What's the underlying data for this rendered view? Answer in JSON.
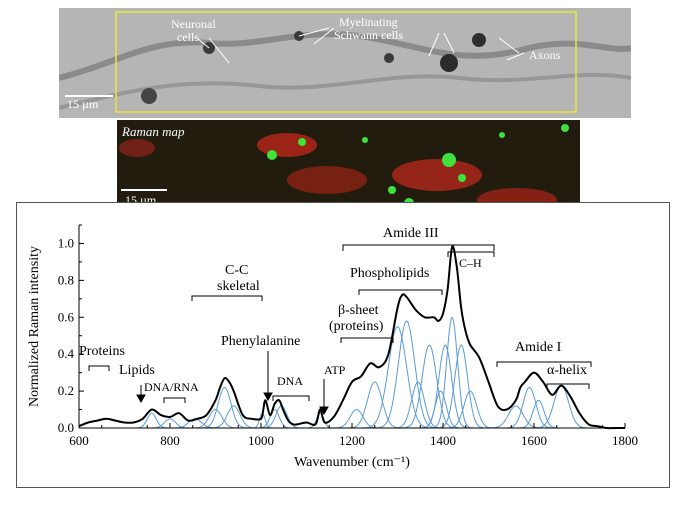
{
  "microscopy": {
    "labels": {
      "neuronal": "Neuronal",
      "cells": "cells",
      "myelinating": "Myelinating",
      "schwann": "Schwann cells",
      "axons": "Axons"
    },
    "scale": "15 µm"
  },
  "raman_map": {
    "title": "Raman map",
    "scale": "15 µm"
  },
  "chart_data": {
    "type": "line",
    "xlabel": "Wavenumber (cm⁻¹)",
    "ylabel": "Normalized Raman intensity",
    "xlim": [
      600,
      1800
    ],
    "ylim": [
      0,
      1.1
    ],
    "xticks": [
      600,
      800,
      1000,
      1200,
      1400,
      1600,
      1800
    ],
    "yticks": [
      0,
      0.2,
      0.4,
      0.6,
      0.8,
      1.0
    ],
    "grid": false,
    "series": [
      {
        "role": "measured spectrum",
        "color": "#000000",
        "x": [
          600,
          620,
          640,
          660,
          680,
          700,
          720,
          740,
          760,
          780,
          800,
          820,
          840,
          860,
          880,
          900,
          910,
          920,
          930,
          940,
          960,
          980,
          1000,
          1005,
          1010,
          1020,
          1030,
          1040,
          1050,
          1060,
          1070,
          1080,
          1100,
          1120,
          1130,
          1140,
          1160,
          1180,
          1200,
          1220,
          1240,
          1260,
          1280,
          1300,
          1310,
          1320,
          1340,
          1360,
          1380,
          1390,
          1400,
          1410,
          1420,
          1430,
          1440,
          1450,
          1460,
          1480,
          1500,
          1520,
          1540,
          1560,
          1570,
          1580,
          1600,
          1620,
          1640,
          1660,
          1680,
          1700,
          1720,
          1740,
          1760,
          1780,
          1800
        ],
        "y": [
          0.01,
          0.03,
          0.04,
          0.05,
          0.04,
          0.03,
          0.03,
          0.05,
          0.1,
          0.07,
          0.06,
          0.08,
          0.04,
          0.05,
          0.07,
          0.15,
          0.22,
          0.27,
          0.25,
          0.2,
          0.07,
          0.05,
          0.05,
          0.1,
          0.15,
          0.07,
          0.13,
          0.15,
          0.09,
          0.04,
          0.02,
          0.02,
          0.03,
          0.02,
          0.1,
          0.03,
          0.06,
          0.15,
          0.25,
          0.28,
          0.35,
          0.33,
          0.4,
          0.65,
          0.72,
          0.71,
          0.64,
          0.6,
          0.6,
          0.58,
          0.62,
          0.75,
          0.98,
          0.88,
          0.65,
          0.52,
          0.45,
          0.38,
          0.25,
          0.12,
          0.1,
          0.15,
          0.22,
          0.25,
          0.3,
          0.25,
          0.18,
          0.23,
          0.17,
          0.08,
          0.02,
          0.01,
          0.0,
          0.0,
          0.0
        ]
      }
    ],
    "component_bands": {
      "color": "#5b9bd5",
      "peaks": [
        {
          "center": 760,
          "height": 0.08,
          "width": 10
        },
        {
          "center": 800,
          "height": 0.05,
          "width": 12
        },
        {
          "center": 855,
          "height": 0.05,
          "width": 14
        },
        {
          "center": 900,
          "height": 0.1,
          "width": 14
        },
        {
          "center": 920,
          "height": 0.22,
          "width": 14
        },
        {
          "center": 940,
          "height": 0.12,
          "width": 14
        },
        {
          "center": 1003,
          "height": 0.08,
          "width": 6
        },
        {
          "center": 1030,
          "height": 0.1,
          "width": 10
        },
        {
          "center": 1045,
          "height": 0.12,
          "width": 12
        },
        {
          "center": 1130,
          "height": 0.08,
          "width": 8
        },
        {
          "center": 1210,
          "height": 0.1,
          "width": 14
        },
        {
          "center": 1250,
          "height": 0.25,
          "width": 16
        },
        {
          "center": 1300,
          "height": 0.55,
          "width": 20
        },
        {
          "center": 1320,
          "height": 0.58,
          "width": 18
        },
        {
          "center": 1345,
          "height": 0.25,
          "width": 14
        },
        {
          "center": 1370,
          "height": 0.45,
          "width": 16
        },
        {
          "center": 1395,
          "height": 0.2,
          "width": 12
        },
        {
          "center": 1405,
          "height": 0.45,
          "width": 14
        },
        {
          "center": 1420,
          "height": 0.6,
          "width": 12
        },
        {
          "center": 1440,
          "height": 0.45,
          "width": 14
        },
        {
          "center": 1460,
          "height": 0.2,
          "width": 14
        },
        {
          "center": 1560,
          "height": 0.12,
          "width": 16
        },
        {
          "center": 1590,
          "height": 0.22,
          "width": 14
        },
        {
          "center": 1610,
          "height": 0.15,
          "width": 12
        },
        {
          "center": 1660,
          "height": 0.23,
          "width": 16
        }
      ]
    },
    "annotations": {
      "proteins": "Proteins",
      "lipids": "Lipids",
      "dnarna": "DNA/RNA",
      "cc1": "C-C",
      "cc2": "skeletal",
      "phe": "Phenylalanine",
      "dna": "DNA",
      "atp": "ATP",
      "bsheet1": "β-sheet",
      "bsheet2": "(proteins)",
      "phospholipids": "Phospholipids",
      "amide3": "Amide III",
      "ch": "C–H",
      "amide1": "Amide I",
      "ahelix": "α-helix"
    }
  }
}
